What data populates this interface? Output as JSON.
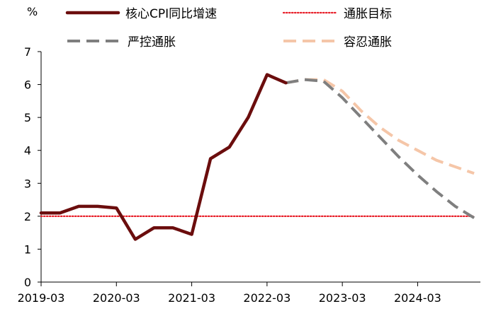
{
  "chart_data": {
    "type": "line",
    "ylabel": "%",
    "ylim": [
      0,
      7
    ],
    "y_ticks": [
      0,
      1,
      2,
      3,
      4,
      5,
      6,
      7
    ],
    "x_ticks": [
      "2019-03",
      "2020-03",
      "2021-03",
      "2022-03",
      "2023-03",
      "2024-03"
    ],
    "grid": false,
    "legend_position": "top",
    "series": [
      {
        "name": "核心CPI同比增速",
        "color": "#6b0d0d",
        "style": "solid",
        "x": [
          "2019-03",
          "2019-06",
          "2019-09",
          "2019-12",
          "2020-03",
          "2020-06",
          "2020-09",
          "2020-12",
          "2021-03",
          "2021-06",
          "2021-09",
          "2021-12",
          "2022-03",
          "2022-06"
        ],
        "values": [
          2.1,
          2.1,
          2.3,
          2.3,
          2.25,
          1.3,
          1.65,
          1.65,
          1.45,
          3.75,
          4.1,
          5.0,
          6.3,
          6.05
        ]
      },
      {
        "name": "通胀目标",
        "color": "#e8202a",
        "style": "dotted",
        "x": [
          "2019-03",
          "2024-12"
        ],
        "values": [
          2.0,
          2.0
        ]
      },
      {
        "name": "严控通胀",
        "color": "#7f7f7f",
        "style": "dashed",
        "x": [
          "2022-06",
          "2022-09",
          "2022-12",
          "2023-03",
          "2023-06",
          "2023-09",
          "2023-12",
          "2024-03",
          "2024-06",
          "2024-09",
          "2024-12"
        ],
        "values": [
          6.05,
          6.15,
          6.1,
          5.6,
          5.0,
          4.4,
          3.8,
          3.25,
          2.75,
          2.3,
          1.95
        ]
      },
      {
        "name": "容忍通胀",
        "color": "#f5c6a8",
        "style": "dashed",
        "x": [
          "2022-06",
          "2022-09",
          "2022-12",
          "2023-03",
          "2023-06",
          "2023-09",
          "2023-12",
          "2024-03",
          "2024-06",
          "2024-09",
          "2024-12"
        ],
        "values": [
          6.05,
          6.15,
          6.15,
          5.8,
          5.2,
          4.7,
          4.3,
          4.0,
          3.7,
          3.5,
          3.3
        ]
      }
    ]
  }
}
